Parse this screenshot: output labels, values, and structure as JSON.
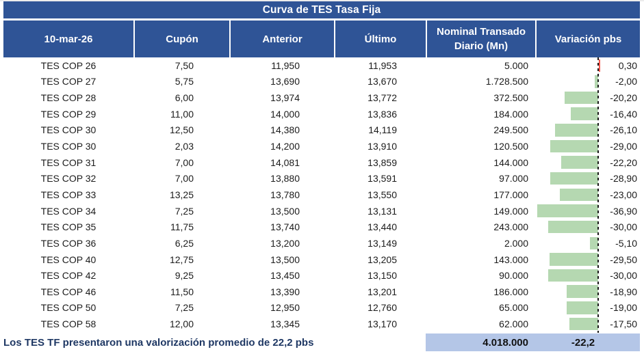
{
  "title": "Curva de TES Tasa Fija",
  "header": {
    "columns": [
      "10-mar-26",
      "Cupón",
      "Anterior",
      "Último",
      "Nominal Transado Diario (Mn)",
      "Variación pbs"
    ]
  },
  "chart_data": {
    "type": "table",
    "title": "Curva de TES Tasa Fija",
    "date_label": "10-mar-26",
    "columns": [
      "10-mar-26",
      "Cupón",
      "Anterior",
      "Último",
      "Nominal Transado Diario (Mn)",
      "Variación pbs"
    ],
    "rows": [
      {
        "name": "TES COP 26",
        "cupon": "7,50",
        "anterior": "11,950",
        "ultimo": "11,953",
        "nominal": "5.000",
        "variacion": "0,30",
        "pbs": 0.3
      },
      {
        "name": "TES COP 27",
        "cupon": "5,75",
        "anterior": "13,690",
        "ultimo": "13,670",
        "nominal": "1.728.500",
        "variacion": "-2,00",
        "pbs": -2.0
      },
      {
        "name": "TES COP 28",
        "cupon": "6,00",
        "anterior": "13,974",
        "ultimo": "13,772",
        "nominal": "372.500",
        "variacion": "-20,20",
        "pbs": -20.2
      },
      {
        "name": "TES COP 29",
        "cupon": "11,00",
        "anterior": "14,000",
        "ultimo": "13,836",
        "nominal": "184.000",
        "variacion": "-16,40",
        "pbs": -16.4
      },
      {
        "name": "TES COP 30",
        "cupon": "12,50",
        "anterior": "14,380",
        "ultimo": "14,119",
        "nominal": "249.500",
        "variacion": "-26,10",
        "pbs": -26.1
      },
      {
        "name": "TES COP 30",
        "cupon": "2,03",
        "anterior": "14,200",
        "ultimo": "13,910",
        "nominal": "120.500",
        "variacion": "-29,00",
        "pbs": -29.0
      },
      {
        "name": "TES COP 31",
        "cupon": "7,00",
        "anterior": "14,081",
        "ultimo": "13,859",
        "nominal": "144.000",
        "variacion": "-22,20",
        "pbs": -22.2
      },
      {
        "name": "TES COP 32",
        "cupon": "7,00",
        "anterior": "13,880",
        "ultimo": "13,591",
        "nominal": "97.000",
        "variacion": "-28,90",
        "pbs": -28.9
      },
      {
        "name": "TES COP 33",
        "cupon": "13,25",
        "anterior": "13,780",
        "ultimo": "13,550",
        "nominal": "177.000",
        "variacion": "-23,00",
        "pbs": -23.0
      },
      {
        "name": "TES COP 34",
        "cupon": "7,25",
        "anterior": "13,500",
        "ultimo": "13,131",
        "nominal": "149.000",
        "variacion": "-36,90",
        "pbs": -36.9
      },
      {
        "name": "TES COP 35",
        "cupon": "11,75",
        "anterior": "13,740",
        "ultimo": "13,440",
        "nominal": "243.000",
        "variacion": "-30,00",
        "pbs": -30.0
      },
      {
        "name": "TES COP 36",
        "cupon": "6,25",
        "anterior": "13,200",
        "ultimo": "13,149",
        "nominal": "2.000",
        "variacion": "-5,10",
        "pbs": -5.1
      },
      {
        "name": "TES COP 40",
        "cupon": "12,75",
        "anterior": "13,500",
        "ultimo": "13,205",
        "nominal": "143.000",
        "variacion": "-29,50",
        "pbs": -29.5
      },
      {
        "name": "TES COP 42",
        "cupon": "9,25",
        "anterior": "13,450",
        "ultimo": "13,150",
        "nominal": "90.000",
        "variacion": "-30,00",
        "pbs": -30.0
      },
      {
        "name": "TES COP 46",
        "cupon": "11,50",
        "anterior": "13,390",
        "ultimo": "13,201",
        "nominal": "186.000",
        "variacion": "-18,90",
        "pbs": -18.9
      },
      {
        "name": "TES COP 50",
        "cupon": "7,25",
        "anterior": "12,950",
        "ultimo": "12,760",
        "nominal": "65.000",
        "variacion": "-19,00",
        "pbs": -19.0
      },
      {
        "name": "TES COP 58",
        "cupon": "12,00",
        "anterior": "13,345",
        "ultimo": "13,170",
        "nominal": "62.000",
        "variacion": "-17,50",
        "pbs": -17.5
      }
    ],
    "summary": {
      "nominal_total": "4.018.000",
      "variacion_prom": "-22,2"
    },
    "databars": {
      "column": "Variación pbs",
      "negative_color": "#b5d8b1",
      "positive_color": "#f5554a",
      "axis_style": "black-dashed-vertical",
      "min_pbs": -36.9,
      "max_pbs": 0.3
    }
  },
  "footer": {
    "note": "Los TES TF presentaron una valorización promedio de 22,2 pbs"
  },
  "colors": {
    "header_bg": "#2f5496",
    "header_text": "#ffffff",
    "body_text": "#1b1b1b",
    "summary_bg": "#b4c6e7",
    "footer_text": "#1f3864",
    "bar_negative": "#b5d8b1",
    "bar_positive": "#f5554a"
  }
}
